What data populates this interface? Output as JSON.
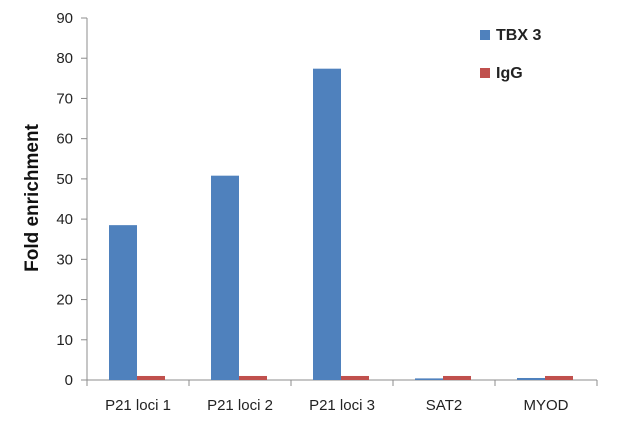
{
  "chart_data": {
    "type": "bar",
    "title": "",
    "xlabel": "",
    "ylabel": "Fold enrichment",
    "ylim": [
      0,
      90
    ],
    "yticks": [
      0,
      10,
      20,
      30,
      40,
      50,
      60,
      70,
      80,
      90
    ],
    "grid": false,
    "legend_position": "top-right",
    "categories": [
      "P21 loci 1",
      "P21 loci 2",
      "P21 loci 3",
      "SAT2",
      "MYOD"
    ],
    "series": [
      {
        "name": "TBX 3",
        "color": "#4F81BD",
        "values": [
          38.5,
          50.8,
          77.4,
          0.4,
          0.5
        ]
      },
      {
        "name": "IgG",
        "color": "#C0504D",
        "values": [
          1.0,
          1.0,
          1.0,
          1.0,
          1.0
        ]
      }
    ]
  }
}
